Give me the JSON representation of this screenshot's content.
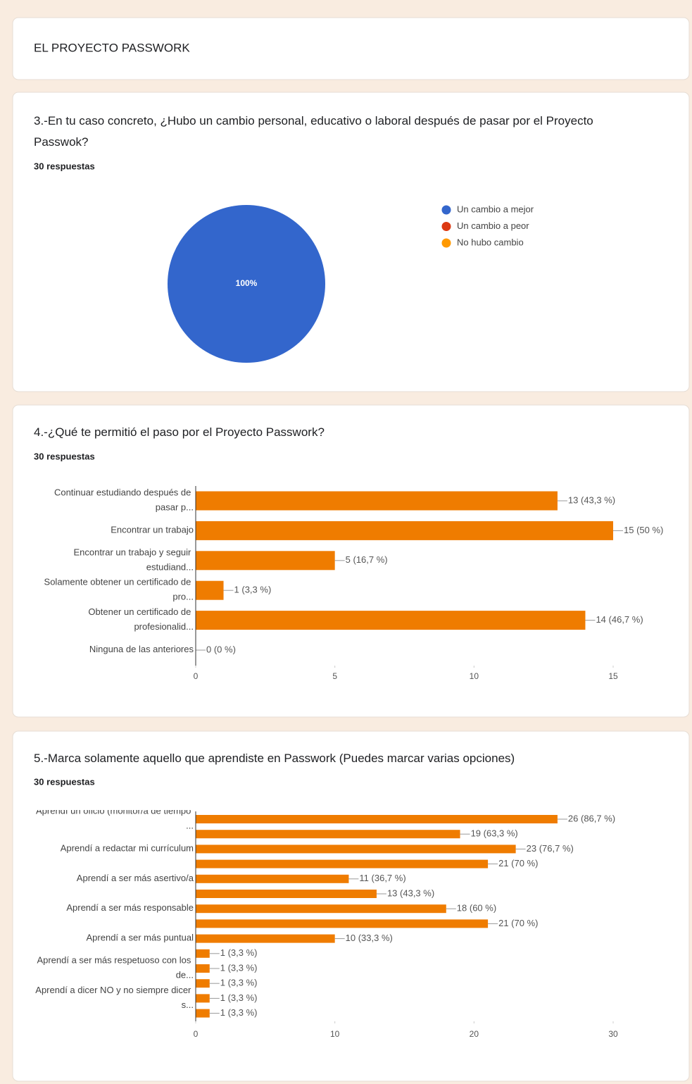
{
  "header": {
    "title": "EL PROYECTO PASSWORK"
  },
  "chart_data": [
    {
      "type": "pie",
      "title": "3.-En tu caso concreto, ¿Hubo un cambio personal, educativo o laboral después de pasar por el Proyecto Passwok?",
      "subtitle": "30 respuestas",
      "categories": [
        "Un cambio a mejor",
        "Un cambio a peor",
        "No hubo cambio"
      ],
      "values": [
        100,
        0,
        0
      ],
      "value_labels": [
        "100%",
        null,
        null
      ],
      "colors": [
        "#3366cc",
        "#dc3912",
        "#ff9900"
      ]
    },
    {
      "type": "hbar",
      "title": "4.-¿Qué te permitió el paso por el Proyecto Passwork?",
      "subtitle": "30 respuestas",
      "categories": [
        "Continuar estudiando después de pasar p...",
        "Encontrar un trabajo",
        "Encontrar un trabajo y seguir estudiand...",
        "Solamente obtener un certificado de pro...",
        "Obtener un certificado de profesionalid...",
        "Ninguna de las anteriores"
      ],
      "values": [
        13,
        15,
        5,
        1,
        14,
        0
      ],
      "value_labels": [
        "13 (43,3 %)",
        "15 (50 %)",
        "5 (16,7 %)",
        "1 (3,3 %)",
        "14 (46,7 %)",
        "0 (0 %)"
      ],
      "color": "#ef7c00",
      "xlim": [
        0,
        15
      ],
      "xticks": [
        0,
        5,
        10,
        15
      ]
    },
    {
      "type": "hbar",
      "title": "5.-Marca solamente aquello que aprendiste en Passwork (Puedes marcar varias opciones)",
      "subtitle": "30 respuestas",
      "categories": [
        "Aprendí un oficio (monitor/a de tiempo ...",
        null,
        "Aprendí a redactar mi currículum",
        null,
        "Aprendí a ser más asertivo/a",
        null,
        "Aprendí a ser más responsable",
        null,
        "Aprendí a ser más puntual",
        null,
        "Aprendí a ser más respetuoso con los de...",
        null,
        "Aprendí a dicer NO y no siempre dicer s...",
        null
      ],
      "values": [
        26,
        19,
        23,
        21,
        11,
        13,
        18,
        21,
        10,
        1,
        1,
        1,
        1,
        1
      ],
      "value_labels": [
        "26 (86,7 %)",
        "19 (63,3 %)",
        "23 (76,7 %)",
        "21 (70 %)",
        "11 (36,7 %)",
        "13 (43,3 %)",
        "18 (60 %)",
        "21 (70 %)",
        "10 (33,3 %)",
        "1 (3,3 %)",
        "1 (3,3 %)",
        "1 (3,3 %)",
        "1 (3,3 %)",
        "1 (3,3 %)"
      ],
      "color": "#ef7c00",
      "xlim": [
        0,
        30
      ],
      "xticks": [
        0,
        10,
        20,
        30
      ]
    }
  ]
}
